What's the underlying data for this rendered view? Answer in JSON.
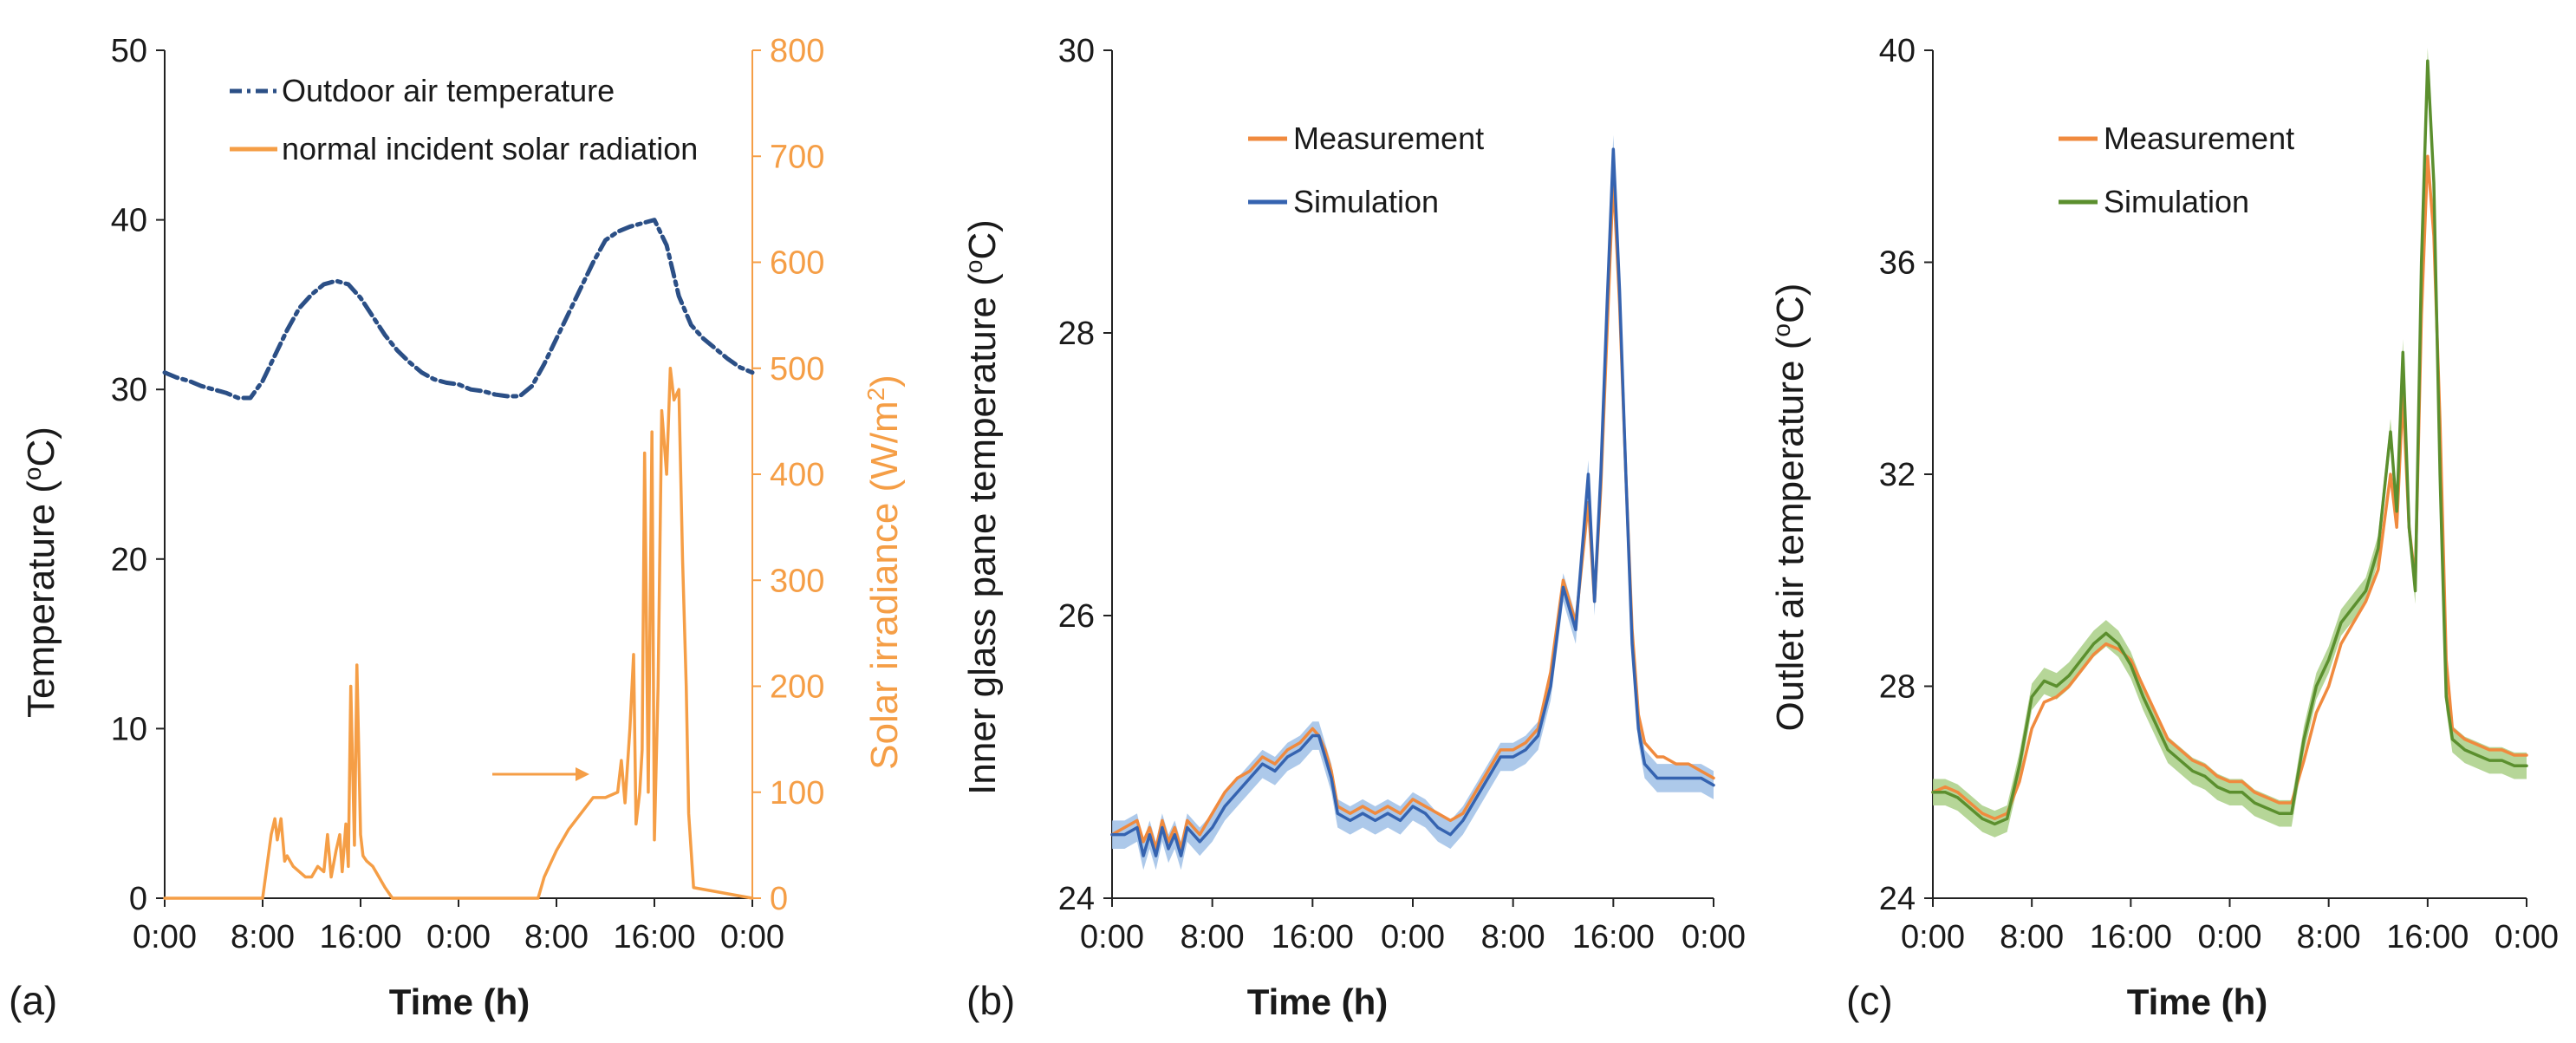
{
  "colors": {
    "outdoor": "#2b4f86",
    "solar": "#f59e46",
    "measurement": "#f08a3e",
    "sim_blue": "#3563b0",
    "sim_blue_band": "#9fbfe6",
    "sim_green": "#5b8f2e",
    "sim_green_band": "#a9cf86",
    "axis": "#222222"
  },
  "chart_data": [
    {
      "type": "line",
      "panel_label": "(a)",
      "xlabel": "Time (h)",
      "ylabel": "Temperature (",
      "ylabel_sup": "o",
      "ylabel_tail": "C)",
      "y2label": "Solar irradiance (W/m",
      "y2label_sup": "2",
      "y2label_tail": ")",
      "xlim": [
        0,
        48
      ],
      "ylim": [
        0,
        50
      ],
      "y2lim": [
        0,
        800
      ],
      "xticks": [
        0,
        8,
        16,
        24,
        32,
        40,
        48
      ],
      "xtick_labels": [
        "0:00",
        "8:00",
        "16:00",
        "0:00",
        "8:00",
        "16:00",
        "0:00"
      ],
      "yticks": [
        0,
        10,
        20,
        30,
        40,
        50
      ],
      "ytick_labels": [
        "0",
        "10",
        "20",
        "30",
        "40",
        "50"
      ],
      "y2ticks": [
        0,
        100,
        200,
        300,
        400,
        500,
        600,
        700,
        800
      ],
      "y2tick_labels": [
        "0",
        "100",
        "200",
        "300",
        "400",
        "500",
        "600",
        "700",
        "800"
      ],
      "legend": [
        "Outdoor air temperature",
        "normal incident solar radiation"
      ],
      "annotation": "arrow pointing to solar irradiance axis",
      "series": [
        {
          "name": "Outdoor air temperature",
          "axis": "left",
          "style": "dash-dot",
          "x": [
            0,
            1,
            2,
            3,
            4,
            5,
            6,
            7,
            8,
            9,
            10,
            11,
            12,
            13,
            14,
            15,
            16,
            17,
            18,
            19,
            20,
            21,
            22,
            23,
            24,
            25,
            26,
            27,
            28,
            29,
            30,
            31,
            32,
            33,
            34,
            35,
            36,
            37,
            38,
            39,
            40,
            41,
            42,
            43,
            44,
            45,
            46,
            47,
            48
          ],
          "values": [
            31,
            30.7,
            30.5,
            30.2,
            30.0,
            29.8,
            29.5,
            29.5,
            30.5,
            32,
            33.5,
            34.8,
            35.6,
            36.2,
            36.4,
            36.2,
            35.4,
            34.3,
            33.2,
            32.3,
            31.6,
            31.0,
            30.6,
            30.4,
            30.3,
            30.0,
            29.9,
            29.7,
            29.6,
            29.6,
            30.2,
            31.5,
            33.0,
            34.5,
            36.0,
            37.5,
            38.8,
            39.3,
            39.6,
            39.8,
            40.0,
            38.5,
            35.5,
            33.8,
            33.0,
            32.4,
            31.8,
            31.3,
            31.0
          ]
        },
        {
          "name": "normal incident solar radiation",
          "axis": "right",
          "style": "solid",
          "x": [
            0,
            8.0,
            8.7,
            9.0,
            9.2,
            9.5,
            9.8,
            10.0,
            10.5,
            11.0,
            11.5,
            12.0,
            12.5,
            13.0,
            13.3,
            13.6,
            14.0,
            14.3,
            14.5,
            14.8,
            15.0,
            15.2,
            15.5,
            15.7,
            16.0,
            16.2,
            16.5,
            17.0,
            17.5,
            18.0,
            18.3,
            18.6,
            30.5,
            31.0,
            32.0,
            33.0,
            34.0,
            35.0,
            36.0,
            37.0,
            37.3,
            37.6,
            38.0,
            38.3,
            38.5,
            38.8,
            39.0,
            39.2,
            39.5,
            39.8,
            40.0,
            40.3,
            40.6,
            41.0,
            41.3,
            41.6,
            42.0,
            42.3,
            42.6,
            42.8,
            43.2,
            48
          ],
          "values": [
            0,
            0,
            60,
            75,
            55,
            75,
            35,
            40,
            30,
            25,
            20,
            20,
            30,
            25,
            60,
            20,
            45,
            60,
            25,
            70,
            30,
            200,
            50,
            220,
            60,
            40,
            35,
            30,
            20,
            10,
            5,
            0,
            0,
            20,
            45,
            65,
            80,
            95,
            95,
            100,
            130,
            90,
            160,
            230,
            70,
            100,
            140,
            420,
            100,
            440,
            55,
            200,
            460,
            400,
            500,
            470,
            480,
            320,
            200,
            80,
            10,
            0
          ]
        }
      ]
    },
    {
      "type": "line",
      "panel_label": "(b)",
      "xlabel": "Time (h)",
      "ylabel": "Inner glass pane temperature (",
      "ylabel_sup": "o",
      "ylabel_tail": "C)",
      "xlim": [
        0,
        48
      ],
      "ylim": [
        24,
        30
      ],
      "xticks": [
        0,
        8,
        16,
        24,
        32,
        40,
        48
      ],
      "xtick_labels": [
        "0:00",
        "8:00",
        "16:00",
        "0:00",
        "8:00",
        "16:00",
        "0:00"
      ],
      "yticks": [
        24,
        26,
        28,
        30
      ],
      "ytick_labels": [
        "24",
        "26",
        "28",
        "30"
      ],
      "legend": [
        "Measurement",
        "Simulation"
      ],
      "series": [
        {
          "name": "Measurement",
          "x": [
            0,
            1,
            2,
            2.5,
            3,
            3.5,
            4,
            4.5,
            5,
            5.5,
            6,
            7,
            8,
            9,
            10,
            11,
            12,
            13,
            14,
            15,
            15.5,
            16,
            16.5,
            17,
            17.5,
            18,
            19,
            20,
            21,
            22,
            23,
            24,
            25,
            26,
            27,
            28,
            29,
            30,
            31,
            32,
            33,
            34,
            35,
            36,
            37,
            38,
            38.5,
            39,
            39.5,
            40,
            40.5,
            41,
            41.5,
            42,
            42.5,
            43,
            43.5,
            44,
            45,
            46,
            47,
            48
          ],
          "values": [
            24.45,
            24.5,
            24.55,
            24.4,
            24.5,
            24.35,
            24.55,
            24.4,
            24.5,
            24.35,
            24.55,
            24.45,
            24.6,
            24.75,
            24.85,
            24.9,
            25.0,
            24.95,
            25.05,
            25.1,
            25.15,
            25.2,
            25.15,
            25.05,
            24.9,
            24.65,
            24.6,
            24.65,
            24.6,
            24.65,
            24.6,
            24.7,
            24.65,
            24.6,
            24.55,
            24.6,
            24.75,
            24.9,
            25.05,
            25.05,
            25.1,
            25.2,
            25.6,
            26.25,
            25.95,
            26.8,
            26.1,
            26.9,
            28.0,
            29.1,
            28.2,
            27.0,
            25.9,
            25.3,
            25.1,
            25.05,
            25.0,
            25.0,
            24.95,
            24.95,
            24.9,
            24.85
          ]
        },
        {
          "name": "Simulation",
          "band": 0.1,
          "x": [
            0,
            1,
            2,
            2.5,
            3,
            3.5,
            4,
            4.5,
            5,
            5.5,
            6,
            7,
            8,
            9,
            10,
            11,
            12,
            13,
            14,
            15,
            15.5,
            16,
            16.5,
            17,
            17.5,
            18,
            19,
            20,
            21,
            22,
            23,
            24,
            25,
            26,
            27,
            28,
            29,
            30,
            31,
            32,
            33,
            34,
            35,
            36,
            37,
            38,
            38.5,
            39,
            39.5,
            40,
            40.5,
            41,
            41.5,
            42,
            42.5,
            43,
            43.5,
            44,
            45,
            46,
            47,
            48
          ],
          "values": [
            24.45,
            24.45,
            24.5,
            24.3,
            24.45,
            24.3,
            24.5,
            24.35,
            24.45,
            24.3,
            24.5,
            24.4,
            24.5,
            24.65,
            24.75,
            24.85,
            24.95,
            24.9,
            25.0,
            25.05,
            25.1,
            25.15,
            25.15,
            25.0,
            24.85,
            24.6,
            24.55,
            24.6,
            24.55,
            24.6,
            24.55,
            24.65,
            24.6,
            24.5,
            24.45,
            24.55,
            24.7,
            24.85,
            25.0,
            25.0,
            25.05,
            25.15,
            25.5,
            26.2,
            25.9,
            27.0,
            26.1,
            27.0,
            28.2,
            29.3,
            28.3,
            27.0,
            25.8,
            25.2,
            24.95,
            24.9,
            24.85,
            24.85,
            24.85,
            24.85,
            24.85,
            24.8
          ]
        }
      ]
    },
    {
      "type": "line",
      "panel_label": "(c)",
      "xlabel": "Time (h)",
      "ylabel": "Outlet air temperature (",
      "ylabel_sup": "o",
      "ylabel_tail": "C)",
      "xlim": [
        0,
        48
      ],
      "ylim": [
        24,
        40
      ],
      "xticks": [
        0,
        8,
        16,
        24,
        32,
        40,
        48
      ],
      "xtick_labels": [
        "0:00",
        "8:00",
        "16:00",
        "0:00",
        "8:00",
        "16:00",
        "0:00"
      ],
      "yticks": [
        24,
        28,
        32,
        36,
        40
      ],
      "ytick_labels": [
        "24",
        "28",
        "32",
        "36",
        "40"
      ],
      "legend": [
        "Measurement",
        "Simulation"
      ],
      "series": [
        {
          "name": "Measurement",
          "x": [
            0,
            1,
            2,
            3,
            4,
            5,
            6,
            7,
            8,
            9,
            10,
            11,
            12,
            13,
            14,
            15,
            16,
            17,
            18,
            19,
            20,
            21,
            22,
            23,
            24,
            25,
            26,
            27,
            28,
            29,
            30,
            31,
            32,
            33,
            34,
            35,
            36,
            37,
            37.5,
            38,
            38.5,
            39,
            39.5,
            40,
            40.5,
            41,
            41.5,
            42,
            43,
            44,
            45,
            46,
            47,
            48
          ],
          "values": [
            26.0,
            26.1,
            26.0,
            25.8,
            25.6,
            25.5,
            25.6,
            26.2,
            27.2,
            27.7,
            27.8,
            28.0,
            28.3,
            28.6,
            28.8,
            28.7,
            28.5,
            28.0,
            27.5,
            27.0,
            26.8,
            26.6,
            26.5,
            26.3,
            26.2,
            26.2,
            26.0,
            25.9,
            25.8,
            25.8,
            26.6,
            27.5,
            28.0,
            28.8,
            29.2,
            29.6,
            30.2,
            32.0,
            31.0,
            33.5,
            31.0,
            30.0,
            35.0,
            38.0,
            36.5,
            33.0,
            28.5,
            27.2,
            27.0,
            26.9,
            26.8,
            26.8,
            26.7,
            26.7
          ]
        },
        {
          "name": "Simulation",
          "band": 0.25,
          "x": [
            0,
            1,
            2,
            3,
            4,
            5,
            6,
            7,
            8,
            9,
            10,
            11,
            12,
            13,
            14,
            15,
            16,
            17,
            18,
            19,
            20,
            21,
            22,
            23,
            24,
            25,
            26,
            27,
            28,
            29,
            30,
            31,
            32,
            33,
            34,
            35,
            36,
            37,
            37.5,
            38,
            38.5,
            39,
            39.5,
            40,
            40.5,
            41,
            41.5,
            42,
            43,
            44,
            45,
            46,
            47,
            48
          ],
          "values": [
            26.0,
            26.0,
            25.9,
            25.7,
            25.5,
            25.4,
            25.5,
            26.5,
            27.8,
            28.1,
            28.0,
            28.2,
            28.5,
            28.8,
            29.0,
            28.8,
            28.4,
            27.8,
            27.3,
            26.8,
            26.6,
            26.4,
            26.3,
            26.1,
            26.0,
            26.0,
            25.8,
            25.7,
            25.6,
            25.6,
            27.0,
            28.0,
            28.5,
            29.2,
            29.5,
            29.8,
            30.6,
            32.8,
            31.3,
            34.3,
            31.0,
            29.8,
            36.0,
            39.8,
            37.5,
            32.0,
            27.8,
            27.0,
            26.8,
            26.7,
            26.6,
            26.6,
            26.5,
            26.5
          ]
        }
      ]
    }
  ]
}
